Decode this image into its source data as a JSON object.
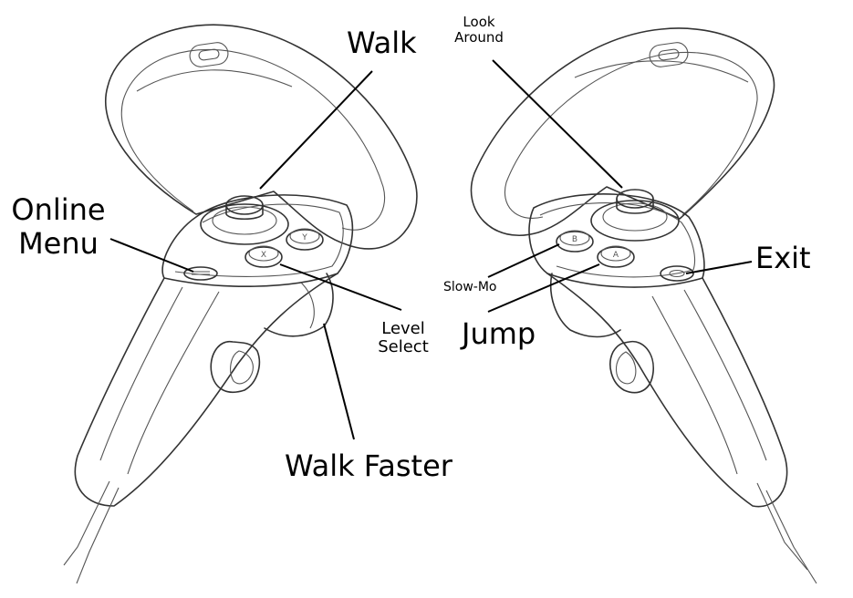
{
  "labels": {
    "walk": "Walk",
    "look_around_line1": "Look",
    "look_around_line2": "Around",
    "online_menu_line1": "Online",
    "online_menu_line2": "Menu",
    "level_select_line1": "Level",
    "level_select_line2": "Select",
    "walk_faster": "Walk Faster",
    "slow_mo": "Slow-Mo",
    "jump": "Jump",
    "exit": "Exit"
  },
  "button_glyphs": {
    "x": "X",
    "y": "Y",
    "a": "A",
    "b": "B"
  },
  "icons": {
    "menu_button": "menu-lines-icon",
    "oculus_button": "oculus-icon"
  }
}
